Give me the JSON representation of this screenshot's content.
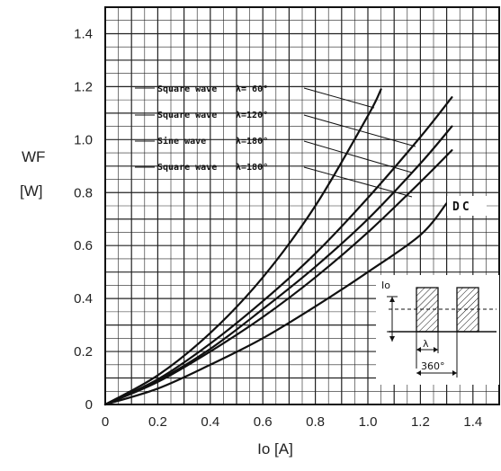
{
  "chart_data": {
    "type": "line",
    "title": "",
    "ylabel_main": "WF",
    "ylabel_unit": "[W]",
    "xlabel": "Io [A]",
    "xlim": [
      0,
      1.5
    ],
    "ylim": [
      0,
      1.5
    ],
    "grid": true,
    "x_ticks": [
      "0",
      "0.2",
      "0.4",
      "0.6",
      "0.8",
      "1.0",
      "1.2",
      "1.4"
    ],
    "y_ticks": [
      "0",
      "0.2",
      "0.4",
      "0.6",
      "0.8",
      "1.0",
      "1.2",
      "1.4"
    ],
    "series": [
      {
        "name": "Square wave λ= 60°",
        "x": [
          0,
          0.2,
          0.4,
          0.6,
          0.8,
          1.0,
          1.05
        ],
        "y": [
          0,
          0.11,
          0.27,
          0.48,
          0.75,
          1.09,
          1.19
        ]
      },
      {
        "name": "Square wave λ=120°",
        "x": [
          0,
          0.2,
          0.4,
          0.6,
          0.8,
          1.0,
          1.2,
          1.32
        ],
        "y": [
          0,
          0.095,
          0.23,
          0.39,
          0.57,
          0.78,
          1.01,
          1.16
        ]
      },
      {
        "name": "Sine wave λ=180°",
        "x": [
          0,
          0.2,
          0.4,
          0.6,
          0.8,
          1.0,
          1.2,
          1.32
        ],
        "y": [
          0,
          0.09,
          0.21,
          0.36,
          0.52,
          0.7,
          0.91,
          1.05
        ]
      },
      {
        "name": "Square wave λ=180°",
        "x": [
          0,
          0.2,
          0.4,
          0.6,
          0.8,
          1.0,
          1.2,
          1.32
        ],
        "y": [
          0,
          0.085,
          0.2,
          0.33,
          0.48,
          0.65,
          0.84,
          0.96
        ]
      },
      {
        "name": "DC",
        "x": [
          0,
          0.2,
          0.4,
          0.6,
          0.8,
          1.0,
          1.2,
          1.3
        ],
        "y": [
          0,
          0.06,
          0.15,
          0.25,
          0.37,
          0.5,
          0.64,
          0.76
        ]
      }
    ],
    "legend": {
      "rows": [
        {
          "wave": "Square wave",
          "lambda": "λ= 60°"
        },
        {
          "wave": "Square wave",
          "lambda": "λ=120°"
        },
        {
          "wave": "Sine wave",
          "lambda": "λ=180°"
        },
        {
          "wave": "Square wave",
          "lambda": "λ=180°"
        }
      ],
      "dc_label": "DC"
    },
    "inset": {
      "current_label": "Io",
      "lambda_label": "λ",
      "period_label": "360°"
    }
  }
}
